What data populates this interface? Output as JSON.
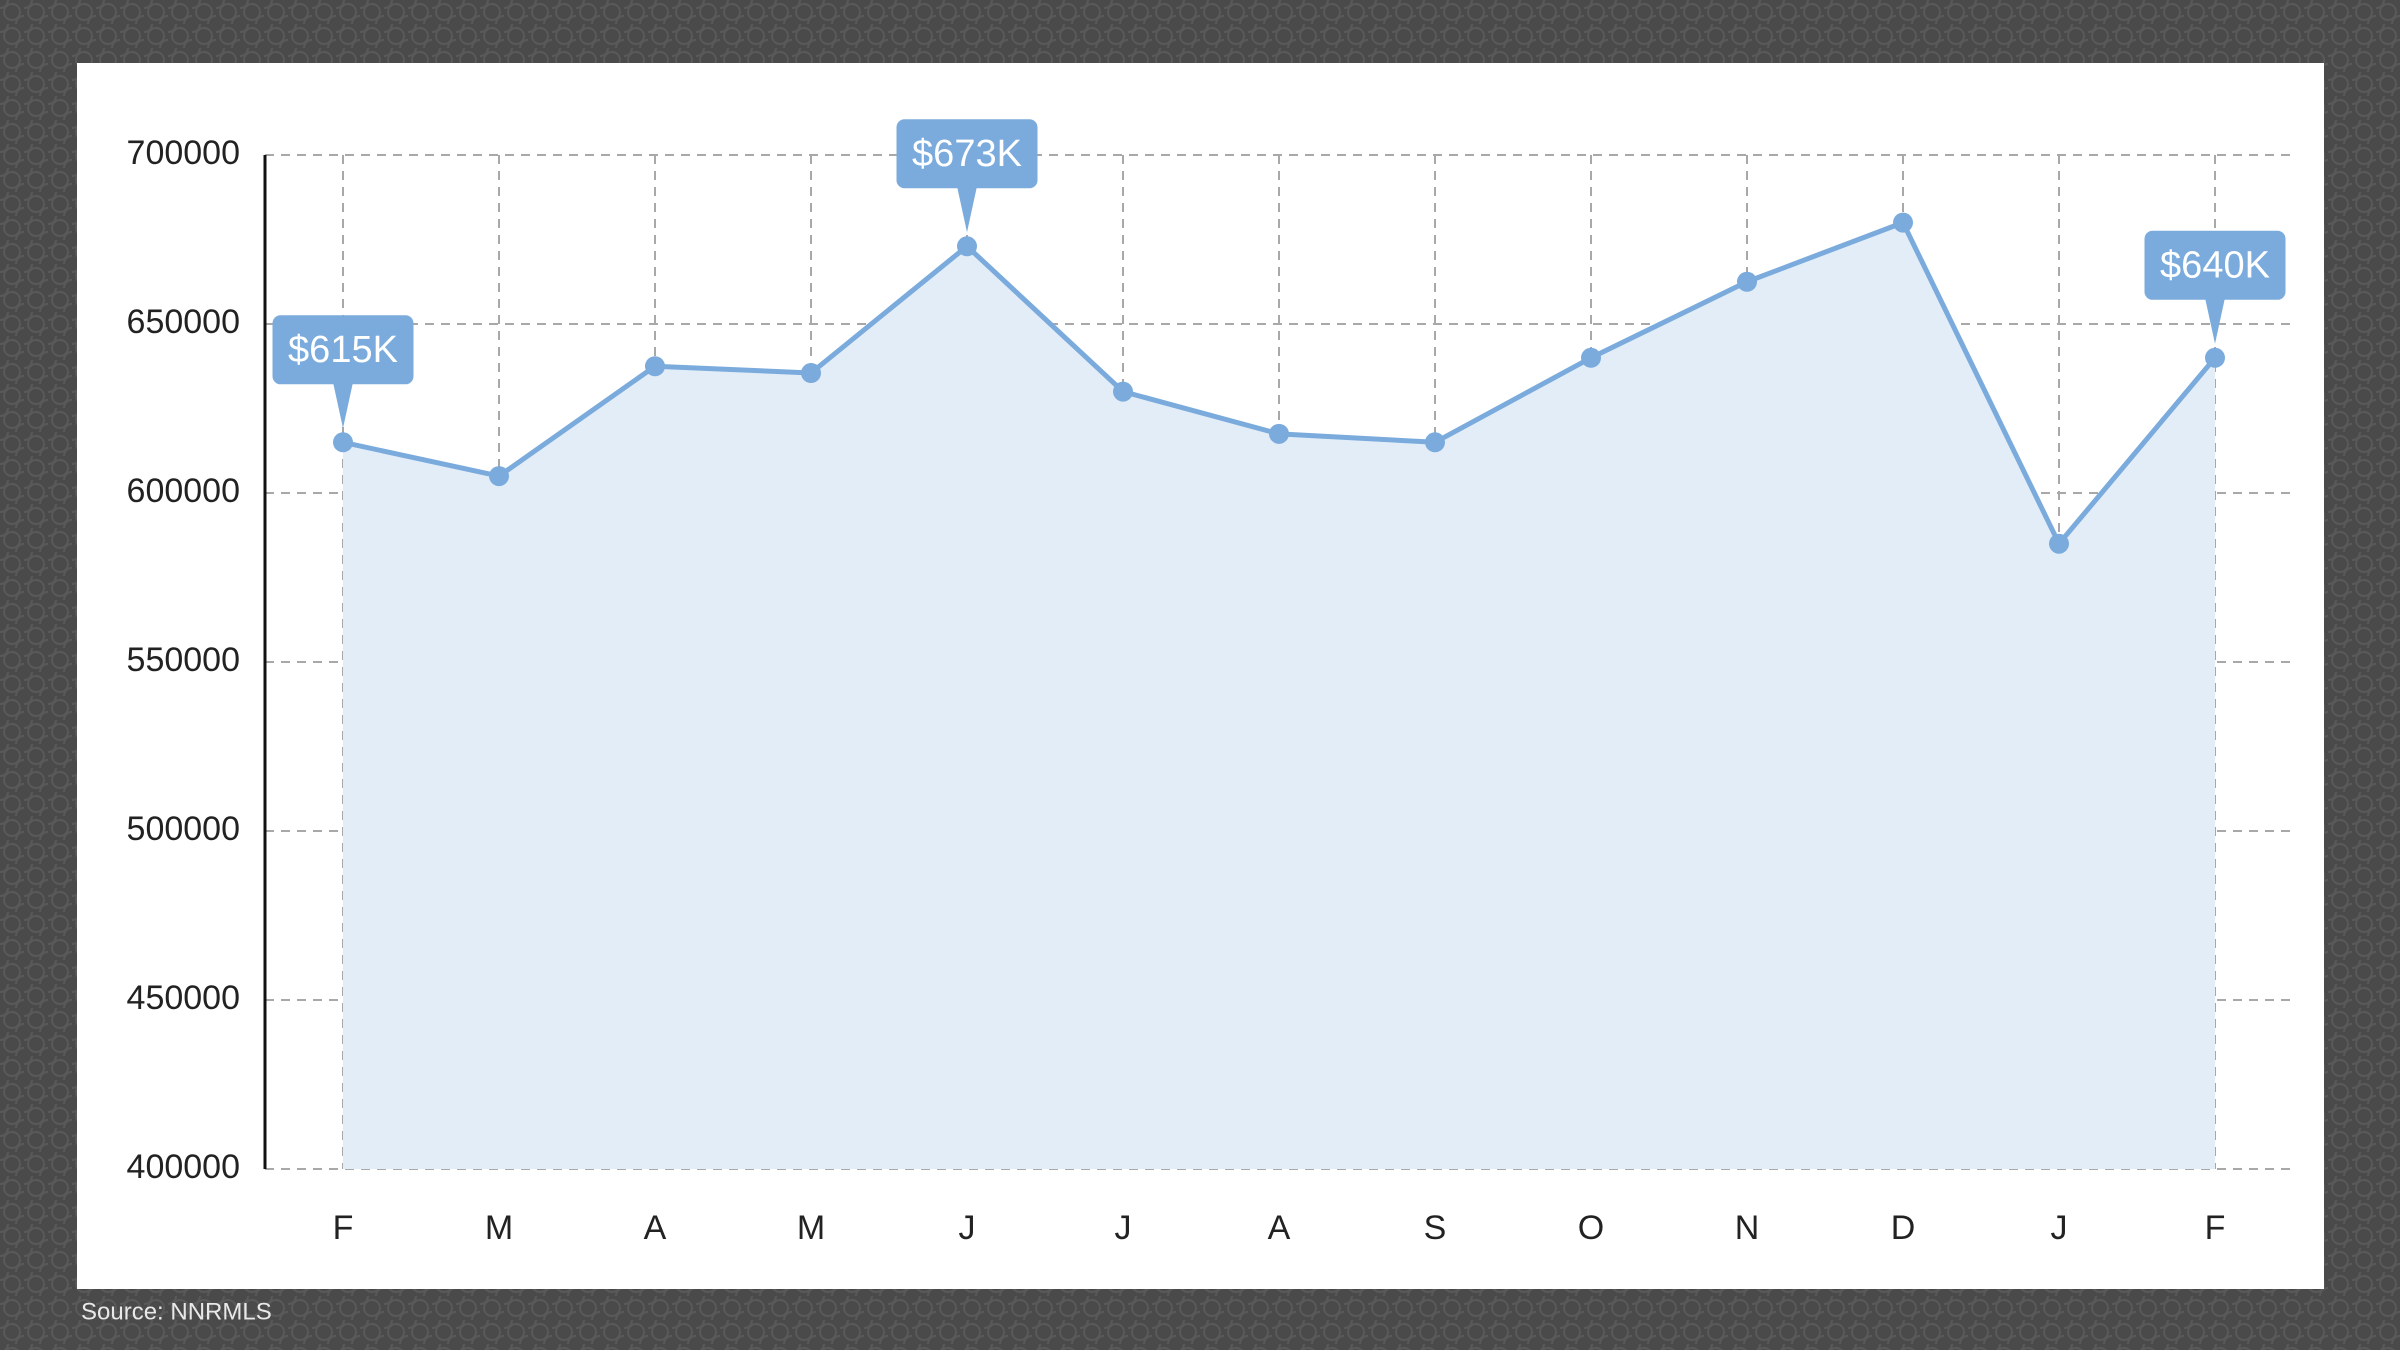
{
  "chart_data": {
    "type": "line",
    "categories": [
      "F",
      "M",
      "A",
      "M",
      "J",
      "J",
      "A",
      "S",
      "O",
      "N",
      "D",
      "J",
      "F"
    ],
    "series": [
      {
        "name": null,
        "color": "#7aabdc",
        "values": [
          615000,
          605000,
          637500,
          635500,
          673000,
          630000,
          617500,
          615000,
          640000,
          662500,
          680000,
          585000,
          640000
        ],
        "value_labels": [
          "$615K",
          null,
          null,
          null,
          "$673K",
          null,
          null,
          null,
          null,
          null,
          null,
          null,
          "$640K"
        ]
      }
    ],
    "ylim": [
      400000,
      700000
    ],
    "yticks": [
      400000,
      450000,
      500000,
      550000,
      600000,
      650000,
      700000
    ],
    "grid": true,
    "source": "Source: NNRMLS"
  }
}
